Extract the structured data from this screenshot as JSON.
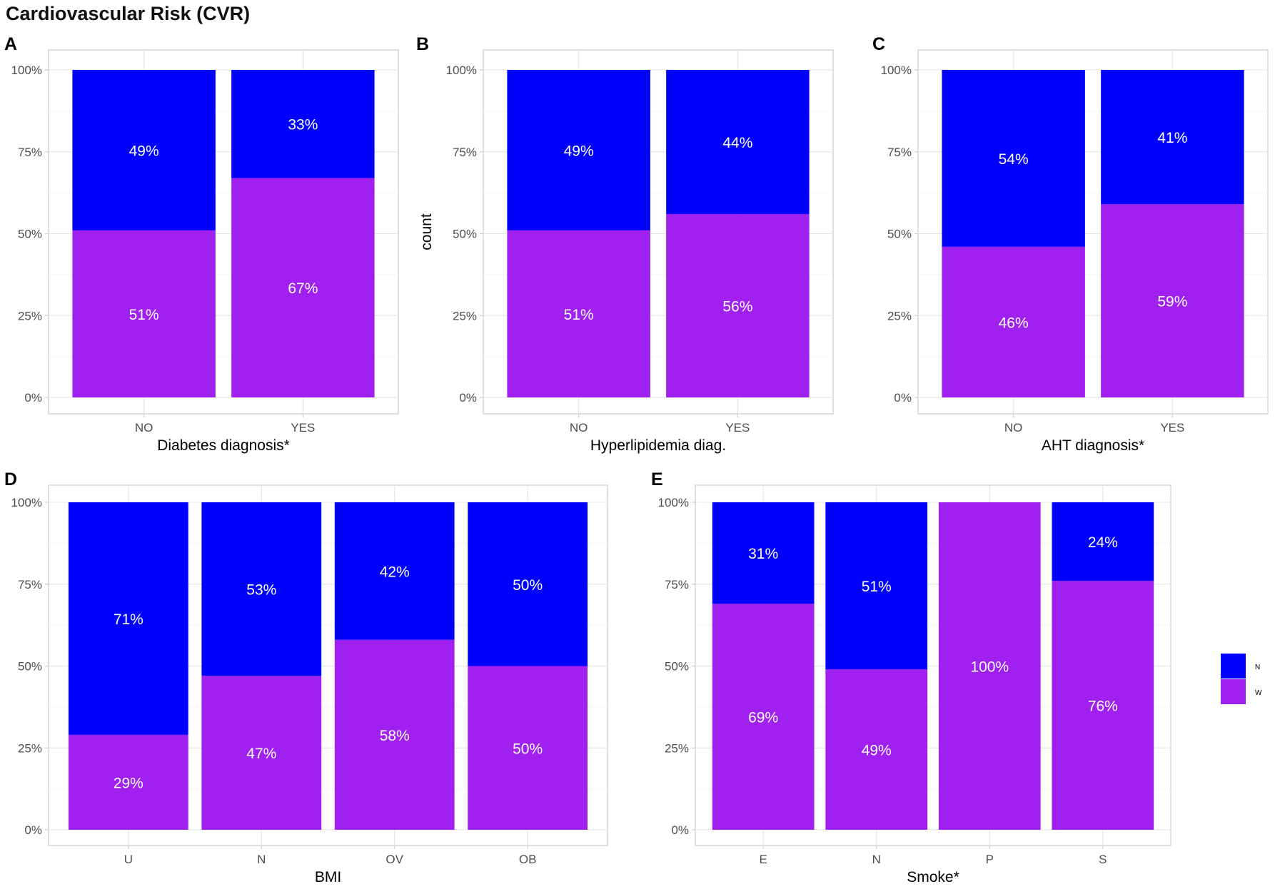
{
  "figure_title": "Cardiovascular Risk (CVR)",
  "colors": {
    "N": "#0000ff",
    "W": "#a020f0",
    "label_text": "#ffffff"
  },
  "legend": {
    "placement": "right",
    "items": [
      {
        "key": "N",
        "label": "N"
      },
      {
        "key": "W",
        "label": "W"
      }
    ]
  },
  "chart_data": [
    {
      "panel": "A",
      "type": "bar",
      "stacked": "fill",
      "title": "",
      "xlabel": "Diabetes diagnosis*",
      "ylabel": "",
      "categories": [
        "NO",
        "YES"
      ],
      "series": [
        {
          "name": "N",
          "values": [
            49,
            33
          ],
          "labels": [
            "49%",
            "33%"
          ]
        },
        {
          "name": "W",
          "values": [
            51,
            67
          ],
          "labels": [
            "51%",
            "67%"
          ]
        }
      ],
      "ylim": [
        0,
        100
      ],
      "yticks": [
        "0%",
        "25%",
        "50%",
        "75%",
        "100%"
      ],
      "grid": true
    },
    {
      "panel": "B",
      "type": "bar",
      "stacked": "fill",
      "title": "",
      "xlabel": "Hyperlipidemia diag.",
      "ylabel": "count",
      "categories": [
        "NO",
        "YES"
      ],
      "series": [
        {
          "name": "N",
          "values": [
            49,
            44
          ],
          "labels": [
            "49%",
            "44%"
          ]
        },
        {
          "name": "W",
          "values": [
            51,
            56
          ],
          "labels": [
            "51%",
            "56%"
          ]
        }
      ],
      "ylim": [
        0,
        100
      ],
      "yticks": [
        "0%",
        "25%",
        "50%",
        "75%",
        "100%"
      ],
      "grid": true
    },
    {
      "panel": "C",
      "type": "bar",
      "stacked": "fill",
      "title": "",
      "xlabel": "AHT diagnosis*",
      "ylabel": "",
      "categories": [
        "NO",
        "YES"
      ],
      "series": [
        {
          "name": "N",
          "values": [
            54,
            41
          ],
          "labels": [
            "54%",
            "41%"
          ]
        },
        {
          "name": "W",
          "values": [
            46,
            59
          ],
          "labels": [
            "46%",
            "59%"
          ]
        }
      ],
      "ylim": [
        0,
        100
      ],
      "yticks": [
        "0%",
        "25%",
        "50%",
        "75%",
        "100%"
      ],
      "grid": true
    },
    {
      "panel": "D",
      "type": "bar",
      "stacked": "fill",
      "title": "",
      "xlabel": "BMI",
      "ylabel": "",
      "categories": [
        "U",
        "N",
        "OV",
        "OB"
      ],
      "series": [
        {
          "name": "N",
          "values": [
            71,
            53,
            42,
            50
          ],
          "labels": [
            "71%",
            "53%",
            "42%",
            "50%"
          ]
        },
        {
          "name": "W",
          "values": [
            29,
            47,
            58,
            50
          ],
          "labels": [
            "29%",
            "47%",
            "58%",
            "50%"
          ]
        }
      ],
      "ylim": [
        0,
        100
      ],
      "yticks": [
        "0%",
        "25%",
        "50%",
        "75%",
        "100%"
      ],
      "grid": true
    },
    {
      "panel": "E",
      "type": "bar",
      "stacked": "fill",
      "title": "",
      "xlabel": "Smoke*",
      "ylabel": "",
      "categories": [
        "E",
        "N",
        "P",
        "S"
      ],
      "series": [
        {
          "name": "N",
          "values": [
            31,
            51,
            0,
            24
          ],
          "labels": [
            "31%",
            "51%",
            "",
            "24%"
          ]
        },
        {
          "name": "W",
          "values": [
            69,
            49,
            100,
            76
          ],
          "labels": [
            "69%",
            "49%",
            "100%",
            "76%"
          ]
        }
      ],
      "ylim": [
        0,
        100
      ],
      "yticks": [
        "0%",
        "25%",
        "50%",
        "75%",
        "100%"
      ],
      "grid": true
    }
  ]
}
